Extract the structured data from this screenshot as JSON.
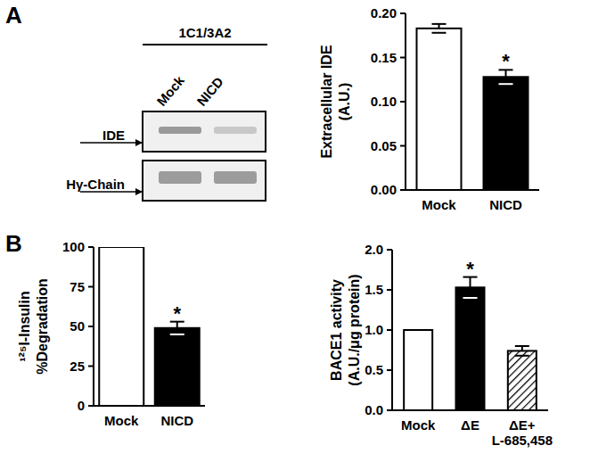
{
  "panel_labels": [
    "A",
    "B"
  ],
  "blot": {
    "header": "1C1/3A2",
    "lanes": [
      "Mock",
      "NICD"
    ],
    "rows": [
      "IDE",
      "Hγ-Chain"
    ]
  },
  "chart_data": [
    {
      "type": "bar",
      "ylabel": [
        "Extracellular IDE",
        "(A.U.)"
      ],
      "categories": [
        "Mock",
        "NICD"
      ],
      "values": [
        0.183,
        0.128
      ],
      "error": [
        0.005,
        0.008
      ],
      "colors": [
        "#ffffff",
        "#000000"
      ],
      "ylim": [
        0,
        0.2
      ],
      "yticks": [
        {
          "value": 0,
          "label": "0.00"
        },
        {
          "value": 0.05,
          "label": "0.05"
        },
        {
          "value": 0.1,
          "label": "0.10"
        },
        {
          "value": 0.15,
          "label": "0.15"
        },
        {
          "value": 0.2,
          "label": "0.20"
        }
      ],
      "annotations": [
        {
          "text": "*",
          "category": "NICD"
        }
      ]
    },
    {
      "type": "bar",
      "ylabel": [
        "¹²⁵I-Insulin",
        "%Degradation"
      ],
      "categories": [
        "Mock",
        "NICD"
      ],
      "values": [
        100,
        49
      ],
      "error": [
        null,
        4
      ],
      "colors": [
        "#ffffff",
        "#000000"
      ],
      "ylim": [
        0,
        100
      ],
      "yticks": [
        0,
        25,
        50,
        75,
        100
      ],
      "annotations": [
        {
          "text": "*",
          "category": "NICD"
        }
      ]
    },
    {
      "type": "bar",
      "ylabel": [
        "BACE1 activity",
        "(A.U./μg protein)"
      ],
      "categories": [
        "Mock",
        "ΔE",
        "ΔE+\nL-685,458"
      ],
      "values": [
        1.0,
        1.53,
        0.74
      ],
      "error": [
        null,
        0.13,
        0.06
      ],
      "colors": [
        "#ffffff",
        "#000000",
        "url(#hatch)"
      ],
      "ylim": [
        0,
        2
      ],
      "yticks": [
        {
          "value": 0,
          "label": "0.0"
        },
        0.5,
        {
          "value": 1,
          "label": "1.0"
        },
        1.5,
        {
          "value": 2,
          "label": "2.0"
        }
      ],
      "annotations": [
        {
          "text": "*",
          "category": "ΔE"
        }
      ]
    }
  ]
}
